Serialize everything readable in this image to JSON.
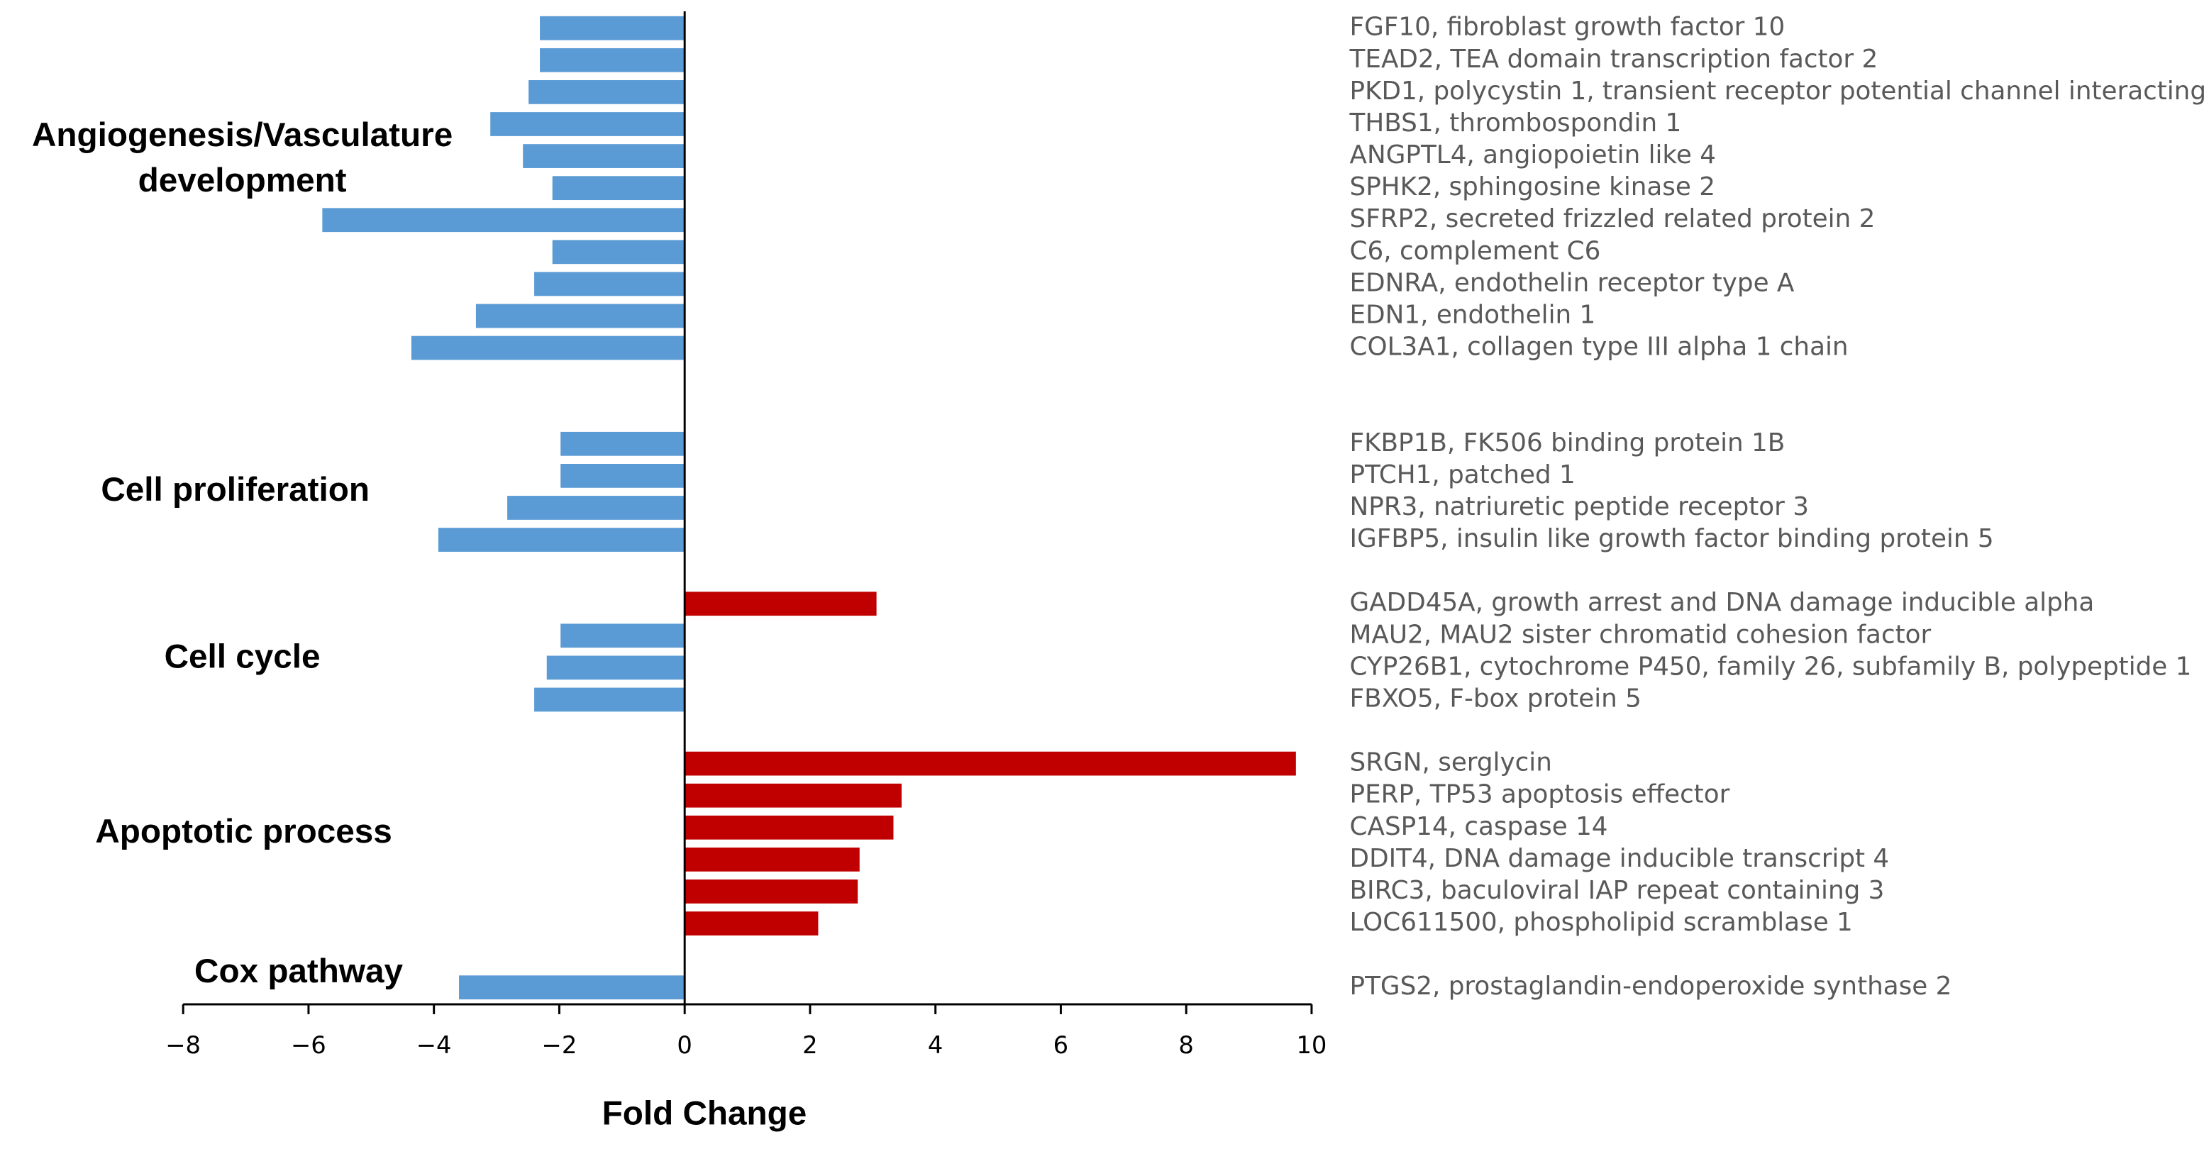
{
  "chart_data": {
    "type": "bar",
    "orientation": "horizontal",
    "x_label": "Fold Change",
    "categories": [
      "FGF10, fibroblast growth factor 10",
      "TEAD2, TEA domain transcription factor 2",
      "PKD1, polycystin 1, transient receptor potential channel interacting",
      "THBS1, thrombospondin 1",
      "ANGPTL4, angiopoietin like 4",
      "SPHK2, sphingosine kinase 2",
      "SFRP2, secreted frizzled related protein 2",
      "C6, complement C6",
      "EDNRA, endothelin receptor type A",
      "EDN1, endothelin 1",
      "COL3A1, collagen type III alpha 1 chain",
      "FKBP1B, FK506 binding protein 1B",
      "PTCH1, patched 1",
      "NPR3, natriuretic peptide receptor 3",
      "IGFBP5, insulin like growth factor binding protein 5",
      "GADD45A, growth arrest and DNA damage inducible alpha",
      "MAU2, MAU2 sister chromatid cohesion factor",
      "CYP26B1, cytochrome P450, family 26, subfamily B, polypeptide 1",
      "FBXO5, F-box protein 5",
      "SRGN, serglycin",
      "PERP, TP53 apoptosis effector",
      "CASP14, caspase 14",
      "DDIT4, DNA damage inducible transcript 4",
      "BIRC3, baculoviral IAP repeat containing 3",
      "LOC611500, phospholipid scramblase 1",
      "PTGS2, prostaglandin-endoperoxide synthase 2"
    ],
    "values": [
      -2.31,
      -2.31,
      -2.49,
      -3.1,
      -2.58,
      -2.11,
      -5.78,
      -2.11,
      -2.4,
      -3.33,
      -4.36,
      -1.98,
      -1.98,
      -2.83,
      -3.93,
      3.06,
      -1.98,
      -2.2,
      -2.4,
      9.75,
      3.46,
      3.33,
      2.79,
      2.76,
      2.13,
      -3.6
    ],
    "groups": [
      {
        "label": [
          "Angiogenesis/Vasculature",
          "development"
        ],
        "count": 11
      },
      {
        "label": [
          "Cell proliferation"
        ],
        "count": 4
      },
      {
        "label": [
          "Cell cycle"
        ],
        "count": 4
      },
      {
        "label": [
          "Apoptotic process"
        ],
        "count": 6
      },
      {
        "label": [
          "Cox pathway"
        ],
        "count": 1
      }
    ],
    "colors": {
      "negative": "#5b9bd5",
      "positive": "#c00000"
    },
    "xlim": [
      -8,
      10
    ],
    "xticks": [
      {
        "value": -8,
        "label": "−8"
      },
      {
        "value": -6,
        "label": "−6"
      },
      {
        "value": -4,
        "label": "−4"
      },
      {
        "value": -2,
        "label": "−2"
      },
      0,
      2,
      4,
      6,
      8,
      10
    ]
  }
}
